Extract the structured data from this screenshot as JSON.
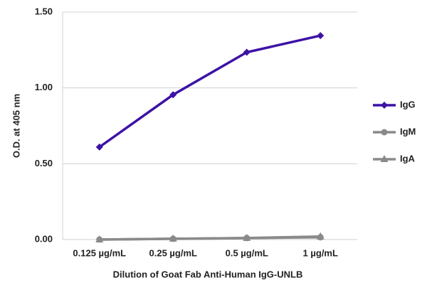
{
  "chart_data": {
    "type": "line",
    "y_label": "O.D. at 405 nm",
    "x_label": "Dilution of Goat Fab Anti-Human IgG-UNLB",
    "categories": [
      "0.125 µg/mL",
      "0.25 µg/mL",
      "0.5 µg/mL",
      "1 µg/mL"
    ],
    "series": [
      {
        "name": "IgG",
        "color": "#3d12a6",
        "marker": "diamond",
        "values": [
          0.61,
          0.955,
          1.235,
          1.345
        ]
      },
      {
        "name": "IgM",
        "color": "#8a8a8a",
        "marker": "circle",
        "values": [
          0.0,
          0.005,
          0.01,
          0.015
        ]
      },
      {
        "name": "IgA",
        "color": "#8a8a8a",
        "marker": "triangle",
        "values": [
          0.0,
          0.005,
          0.01,
          0.02
        ]
      }
    ],
    "ylim": [
      0,
      1.5
    ],
    "yticks": [
      {
        "value": 0,
        "label": "0.00"
      },
      {
        "value": 0.5,
        "label": "0.50"
      },
      {
        "value": 1,
        "label": "1.00"
      },
      {
        "value": 1.5,
        "label": "1.50"
      }
    ],
    "grid": true,
    "legend": "right"
  }
}
